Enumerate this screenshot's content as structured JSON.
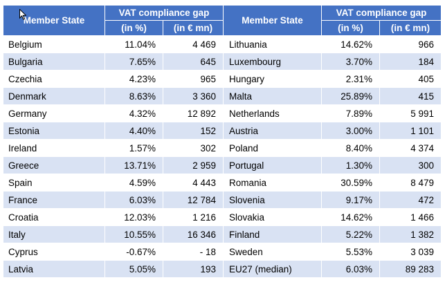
{
  "header": {
    "member_state": "Member State",
    "group": "VAT compliance gap",
    "pct": "(in %)",
    "mn": "(in € mn)"
  },
  "rows_left": [
    {
      "state": "Belgium",
      "pct": "11.04%",
      "mn": "4 469"
    },
    {
      "state": "Bulgaria",
      "pct": "7.65%",
      "mn": "645"
    },
    {
      "state": "Czechia",
      "pct": "4.23%",
      "mn": "965"
    },
    {
      "state": "Denmark",
      "pct": "8.63%",
      "mn": "3 360"
    },
    {
      "state": "Germany",
      "pct": "4.32%",
      "mn": "12 892"
    },
    {
      "state": "Estonia",
      "pct": "4.40%",
      "mn": "152"
    },
    {
      "state": "Ireland",
      "pct": "1.57%",
      "mn": "302"
    },
    {
      "state": "Greece",
      "pct": "13.71%",
      "mn": "2 959"
    },
    {
      "state": "Spain",
      "pct": "4.59%",
      "mn": "4 443"
    },
    {
      "state": "France",
      "pct": "6.03%",
      "mn": "12 784"
    },
    {
      "state": "Croatia",
      "pct": "12.03%",
      "mn": "1 216"
    },
    {
      "state": "Italy",
      "pct": "10.55%",
      "mn": "16 346"
    },
    {
      "state": "Cyprus",
      "pct": "-0.67%",
      "mn": "- 18"
    },
    {
      "state": "Latvia",
      "pct": "5.05%",
      "mn": "193"
    }
  ],
  "rows_right": [
    {
      "state": "Lithuania",
      "pct": "14.62%",
      "mn": "966"
    },
    {
      "state": "Luxembourg",
      "pct": "3.70%",
      "mn": "184"
    },
    {
      "state": "Hungary",
      "pct": "2.31%",
      "mn": "405"
    },
    {
      "state": "Malta",
      "pct": "25.89%",
      "mn": "415"
    },
    {
      "state": "Netherlands",
      "pct": "7.89%",
      "mn": "5 991"
    },
    {
      "state": "Austria",
      "pct": "3.00%",
      "mn": "1 101"
    },
    {
      "state": "Poland",
      "pct": "8.40%",
      "mn": "4 374"
    },
    {
      "state": "Portugal",
      "pct": "1.30%",
      "mn": "300"
    },
    {
      "state": "Romania",
      "pct": "30.59%",
      "mn": "8 479"
    },
    {
      "state": "Slovenia",
      "pct": "9.17%",
      "mn": "472"
    },
    {
      "state": "Slovakia",
      "pct": "14.62%",
      "mn": "1 466"
    },
    {
      "state": "Finland",
      "pct": "5.22%",
      "mn": "1 382"
    },
    {
      "state": "Sweden",
      "pct": "5.53%",
      "mn": "3 039"
    },
    {
      "state": "EU27 (median)",
      "pct": "6.03%",
      "mn": "89 283"
    }
  ],
  "colors": {
    "header": "#4472c4",
    "band": "#d9e2f3"
  }
}
